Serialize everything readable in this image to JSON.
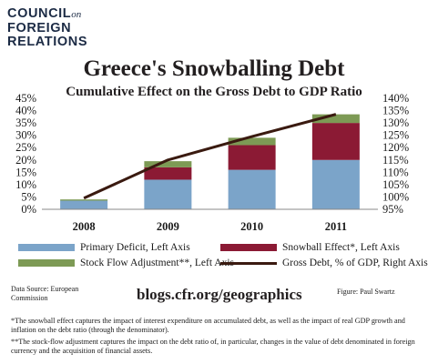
{
  "logo": {
    "line1": "COUNCIL",
    "on": "on",
    "line2": "FOREIGN",
    "line3": "RELATIONS"
  },
  "chart_data": {
    "type": "bar",
    "title": "Greece's Snowballing Debt",
    "subtitle": "Cumulative Effect on the Gross Debt to GDP Ratio",
    "categories": [
      "2008",
      "2009",
      "2010",
      "2011"
    ],
    "stacked": true,
    "series": [
      {
        "name": "Primary Deficit, Left Axis",
        "axis": "left",
        "color": "#7ba4c9",
        "values": [
          3.5,
          12,
          16,
          20
        ]
      },
      {
        "name": "Snowball Effect*, Left Axis",
        "axis": "left",
        "color": "#8b1a34",
        "values": [
          0,
          5,
          10,
          15
        ]
      },
      {
        "name": "Stock Flow Adjustment**, Left Axis",
        "axis": "left",
        "color": "#7d9a55",
        "values": [
          0.5,
          2.5,
          3,
          3.5
        ]
      },
      {
        "name": "Gross Debt, % of GDP, Right Axis",
        "axis": "right",
        "type": "line",
        "color": "#3a1a10",
        "values": [
          99.5,
          115,
          124.5,
          133.5
        ]
      }
    ],
    "left_axis": {
      "ylim": [
        0,
        45
      ],
      "ticks": [
        "0%",
        "5%",
        "10%",
        "15%",
        "20%",
        "25%",
        "30%",
        "35%",
        "40%",
        "45%"
      ]
    },
    "right_axis": {
      "ylim": [
        95,
        140
      ],
      "ticks": [
        "95%",
        "100%",
        "105%",
        "110%",
        "115%",
        "120%",
        "125%",
        "130%",
        "135%",
        "140%"
      ]
    },
    "grid": false,
    "legend_position": "bottom"
  },
  "footer": {
    "source": "Data Source: European Commission",
    "url": "blogs.cfr.org/geographics",
    "credit": "Figure: Paul Swartz",
    "note1": "*The snowball effect captures the impact of interest expenditure on accumulated debt, as well as the impact of real GDP growth and inflation on the debt ratio (through the denominator).",
    "note2": "**The stock-flow adjustment captures the impact on the debt ratio of, in particular, changes in the value of debt denominated in foreign currency and the acquisition of financial assets."
  }
}
